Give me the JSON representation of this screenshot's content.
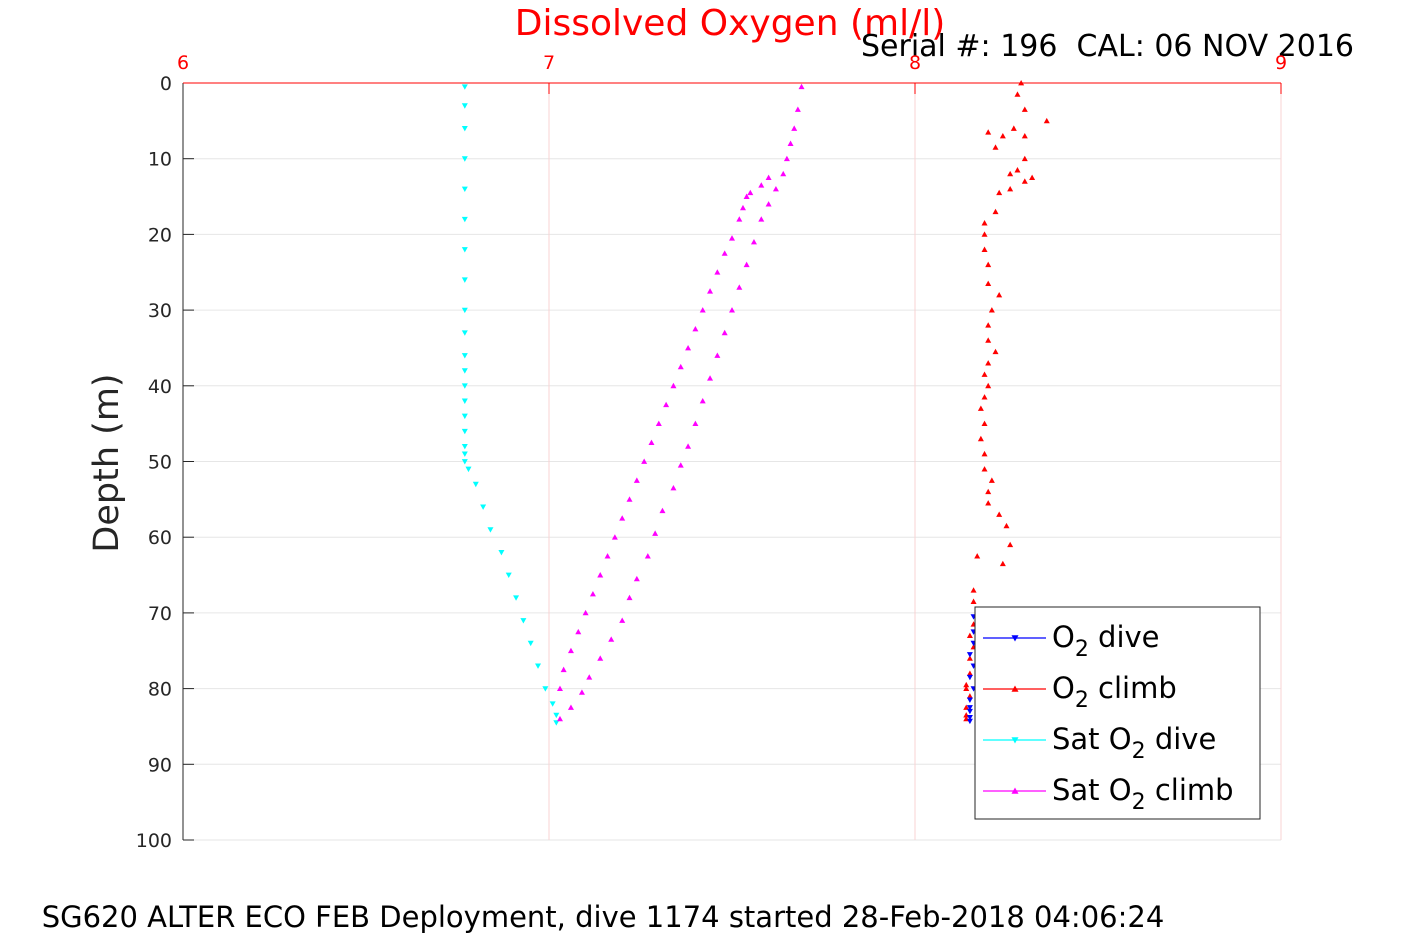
{
  "chart_data": {
    "type": "scatter",
    "title": "Dissolved Oxygen (ml/l)",
    "serial_text": "Serial #: 196  CAL: 06 NOV 2016",
    "footer": "SG620 ALTER ECO FEB Deployment, dive 1174 started 28-Feb-2018 04:06:24",
    "ylabel": "Depth (m)",
    "xlim": [
      6,
      9
    ],
    "ylim": [
      0,
      100
    ],
    "y_reversed": true,
    "x_axis_location": "top",
    "x_ticks": [
      "6",
      "7",
      "8",
      "9"
    ],
    "y_ticks": [
      "0",
      "10",
      "20",
      "30",
      "40",
      "50",
      "60",
      "70",
      "80",
      "90",
      "100"
    ],
    "grid": true,
    "legend_location": "bottom-right",
    "colors": {
      "title": "#ff0000",
      "x_axis": "#ff0000",
      "o2_dive": "#0000ff",
      "o2_climb": "#ff0000",
      "sat_o2_dive": "#00ffff",
      "sat_o2_climb": "#ff00ff"
    },
    "series": [
      {
        "name": "O2 dive",
        "legend_main": "O",
        "legend_sub": "2",
        "legend_rest": " dive",
        "marker": "triangle-down",
        "color": "#0000ff",
        "x": [
          8.16,
          8.16,
          8.16,
          8.15,
          8.16,
          8.15,
          8.16,
          8.15,
          8.15,
          8.15,
          8.15,
          8.15
        ],
        "y": [
          70.5,
          72.5,
          74.0,
          75.5,
          77.0,
          78.5,
          80.0,
          81.5,
          82.5,
          83.0,
          83.8,
          84.3
        ]
      },
      {
        "name": "O2 climb",
        "legend_main": "O",
        "legend_sub": "2",
        "legend_rest": " climb",
        "marker": "triangle-up",
        "color": "#ff0000",
        "x": [
          8.29,
          8.28,
          8.3,
          8.36,
          8.2,
          8.24,
          8.27,
          8.3,
          8.22,
          8.28,
          8.3,
          8.26,
          8.3,
          8.32,
          8.26,
          8.23,
          8.22,
          8.19,
          8.19,
          8.19,
          8.2,
          8.2,
          8.23,
          8.21,
          8.2,
          8.2,
          8.22,
          8.2,
          8.19,
          8.2,
          8.19,
          8.18,
          8.19,
          8.18,
          8.19,
          8.19,
          8.21,
          8.2,
          8.2,
          8.23,
          8.25,
          8.26,
          8.24,
          8.17,
          8.16,
          8.16,
          8.17,
          8.16,
          8.15,
          8.16,
          8.15,
          8.15,
          8.14,
          8.14,
          8.15,
          8.14,
          8.14,
          8.14
        ],
        "y": [
          0,
          1.5,
          3.5,
          5.0,
          6.5,
          7.0,
          6.0,
          7.0,
          8.5,
          11.5,
          10.0,
          12.0,
          13.0,
          12.5,
          14.0,
          14.5,
          17.0,
          18.5,
          20.0,
          22.0,
          24.0,
          26.5,
          28.0,
          30.0,
          32.0,
          34.0,
          35.5,
          37.0,
          38.5,
          40.0,
          41.5,
          43.0,
          45.0,
          47.0,
          49.0,
          51.0,
          52.5,
          54.0,
          55.5,
          57.0,
          58.5,
          61.0,
          63.5,
          62.5,
          67.0,
          68.5,
          70.0,
          71.5,
          73.0,
          74.5,
          76.0,
          78.0,
          79.5,
          80.0,
          81.0,
          82.5,
          83.5,
          84.0
        ]
      },
      {
        "name": "Sat O2 dive",
        "legend_main": "Sat O",
        "legend_sub": "2",
        "legend_rest": " dive",
        "marker": "triangle-down",
        "color": "#00ffff",
        "x": [
          6.77,
          6.77,
          6.77,
          6.77,
          6.77,
          6.77,
          6.77,
          6.77,
          6.77,
          6.77,
          6.77,
          6.77,
          6.77,
          6.77,
          6.77,
          6.77,
          6.77,
          6.77,
          6.77,
          6.78,
          6.8,
          6.82,
          6.84,
          6.87,
          6.89,
          6.91,
          6.93,
          6.95,
          6.97,
          6.99,
          7.01,
          7.02,
          7.02
        ],
        "y": [
          0.5,
          3,
          6,
          10,
          14,
          18,
          22,
          26,
          30,
          33,
          36,
          38,
          40,
          42,
          44,
          46,
          48,
          49,
          50,
          51,
          53,
          56,
          59,
          62,
          65,
          68,
          71,
          74,
          77,
          80,
          82,
          83.5,
          84.5
        ]
      },
      {
        "name": "Sat O2 climb",
        "legend_main": "Sat O",
        "legend_sub": "2",
        "legend_rest": " climb",
        "marker": "triangle-up",
        "color": "#ff00ff",
        "x": [
          7.03,
          7.06,
          7.09,
          7.11,
          7.14,
          7.17,
          7.2,
          7.22,
          7.24,
          7.27,
          7.29,
          7.31,
          7.34,
          7.36,
          7.38,
          7.4,
          7.42,
          7.44,
          7.46,
          7.48,
          7.5,
          7.52,
          7.54,
          7.56,
          7.58,
          7.6,
          7.62,
          7.64,
          7.65,
          7.66,
          7.67,
          7.68,
          7.69,
          7.6,
          7.58,
          7.55,
          7.54,
          7.53,
          7.52,
          7.5,
          7.48,
          7.46,
          7.44,
          7.42,
          7.4,
          7.38,
          7.36,
          7.34,
          7.32,
          7.3,
          7.28,
          7.26,
          7.24,
          7.22,
          7.2,
          7.18,
          7.16,
          7.14,
          7.12,
          7.1,
          7.08,
          7.06,
          7.04,
          7.03
        ],
        "y": [
          84,
          82.5,
          80.5,
          78.5,
          76,
          73.5,
          71,
          68,
          65.5,
          62.5,
          59.5,
          56.5,
          53.5,
          50.5,
          48,
          45,
          42,
          39,
          36,
          33,
          30,
          27,
          24,
          21,
          18,
          16,
          14,
          12,
          10,
          8,
          6,
          3.5,
          0.5,
          12.5,
          13.5,
          14.5,
          15,
          16.5,
          18,
          20.5,
          22.5,
          25,
          27.5,
          30,
          32.5,
          35,
          37.5,
          40,
          42.5,
          45,
          47.5,
          50,
          52.5,
          55,
          57.5,
          60,
          62.5,
          65,
          67.5,
          70,
          72.5,
          75,
          77.5,
          80
        ]
      }
    ]
  }
}
